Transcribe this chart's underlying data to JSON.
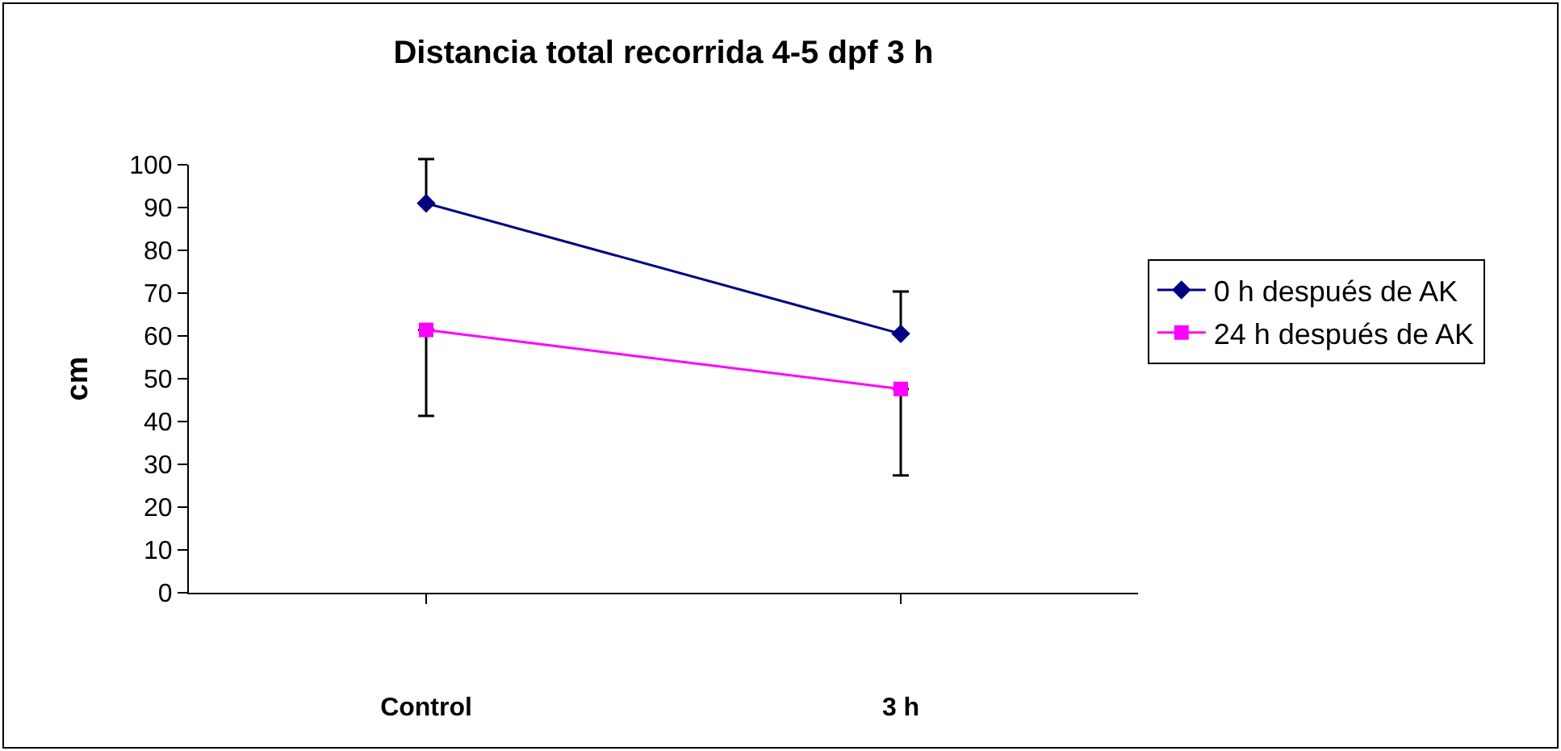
{
  "chart_data": {
    "type": "line",
    "title": "Distancia total recorrida 4-5 dpf 3 h",
    "ylabel": "cm",
    "categories": [
      "Control",
      "3 h"
    ],
    "series": [
      {
        "name": "0 h después de AK",
        "color": "#000080",
        "marker": "diamond",
        "values": [
          91,
          60.5
        ],
        "errors": [
          [
            91,
            101.3
          ],
          [
            60.5,
            70.4
          ]
        ]
      },
      {
        "name": "24 h después de AK",
        "color": "#ff00ff",
        "marker": "square",
        "values": [
          61.4,
          47.6
        ],
        "errors": [
          [
            41.3,
            61.4
          ],
          [
            27.4,
            47.6
          ]
        ]
      }
    ],
    "ylim": [
      0,
      100
    ],
    "yticks": [
      0,
      10,
      20,
      30,
      40,
      50,
      60,
      70,
      80,
      90,
      100
    ],
    "legend": "right"
  }
}
